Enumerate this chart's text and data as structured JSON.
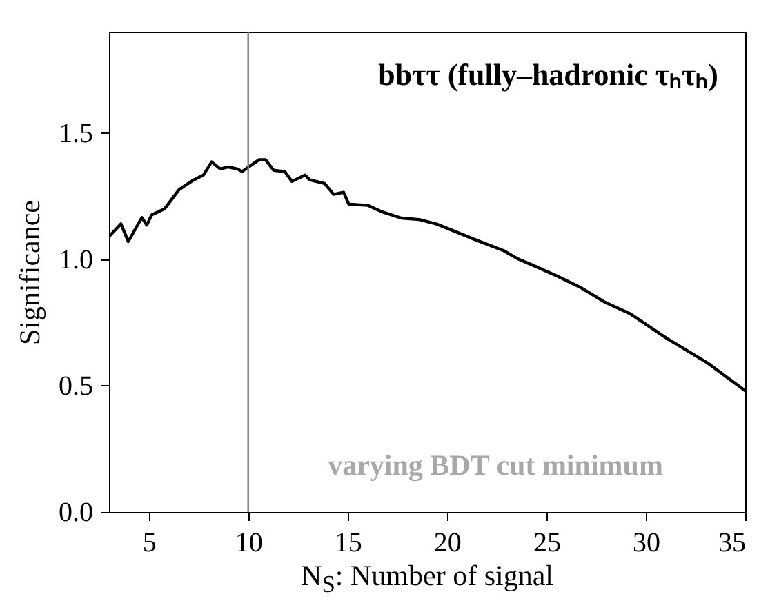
{
  "chart_data": {
    "type": "line",
    "title": "bbττ (fully–hadronic τₕτₕ)",
    "xlabel": "N$_{S}$: Number of signal",
    "ylabel": "Significance",
    "x": [
      3,
      3.6,
      3.97,
      4.65,
      4.9,
      5.14,
      5.8,
      6.53,
      7.26,
      7.75,
      8.16,
      8.6,
      9.0,
      9.46,
      9.7,
      10.06,
      10.55,
      10.87,
      11.28,
      11.84,
      12.2,
      12.86,
      13.1,
      13.84,
      14.3,
      14.8,
      15.06,
      16.03,
      16.75,
      17.7,
      18.6,
      19.45,
      20.4,
      21.4,
      22.85,
      23.58,
      24.3,
      25.5,
      26.75,
      27.97,
      29.2,
      31.1,
      33.1,
      35
    ],
    "series": [
      {
        "color": "#000000",
        "values": [
          1.09,
          1.14,
          1.07,
          1.165,
          1.135,
          1.175,
          1.2,
          1.276,
          1.314,
          1.333,
          1.385,
          1.357,
          1.365,
          1.357,
          1.347,
          1.367,
          1.394,
          1.394,
          1.352,
          1.347,
          1.308,
          1.333,
          1.314,
          1.3,
          1.257,
          1.265,
          1.218,
          1.213,
          1.187,
          1.163,
          1.157,
          1.14,
          1.11,
          1.078,
          1.034,
          1.001,
          0.977,
          0.935,
          0.887,
          0.829,
          0.785,
          0.685,
          0.59,
          0.48
        ]
      }
    ],
    "xlim": [
      3,
      35
    ],
    "ylim": [
      0,
      1.9
    ],
    "xticks": [
      5,
      10,
      15,
      20,
      25,
      30,
      35
    ],
    "yticks": [
      {
        "value": 0,
        "label": "0.0"
      },
      0.5,
      {
        "value": 1,
        "label": "1.0"
      },
      1.5
    ],
    "ref_lines": [
      {
        "axis": "x",
        "value": 10,
        "color": "#777777"
      }
    ],
    "annotations": [
      "varying BDT cut minimum"
    ],
    "grid": false
  }
}
